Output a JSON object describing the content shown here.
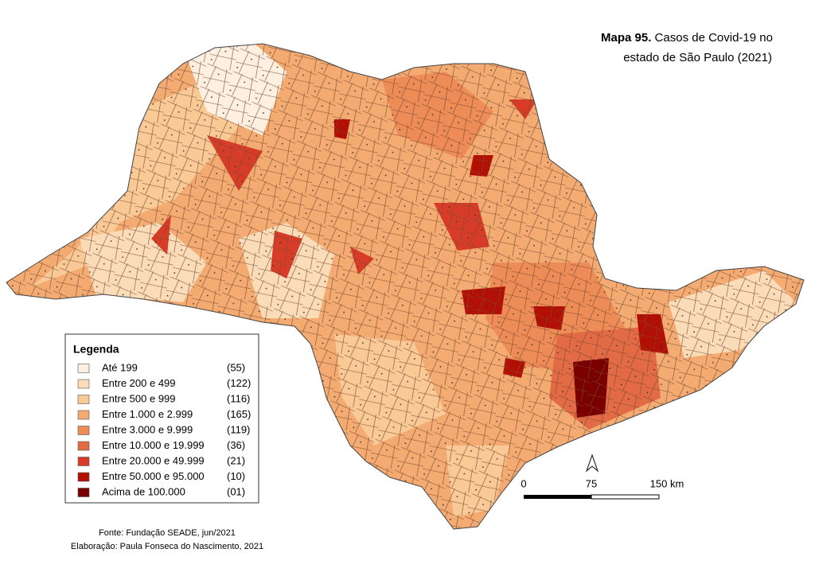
{
  "title": {
    "bold": "Mapa 95.",
    "line1": "Casos de Covid-19 no",
    "line2": "estado de São Paulo (2021)"
  },
  "legend": {
    "title": "Legenda",
    "items": [
      {
        "label": "Até 199",
        "count": "(55)",
        "color": "#fdf0e0"
      },
      {
        "label": "Entre 200 e 499",
        "count": "(122)",
        "color": "#fbdcb8"
      },
      {
        "label": "Entre 500 e 999",
        "count": "(116)",
        "color": "#f9c996"
      },
      {
        "label": "Entre 1.000 e 2.999",
        "count": "(165)",
        "color": "#f4ab72"
      },
      {
        "label": "Entre 3.000 e 9.999",
        "count": "(119)",
        "color": "#ee8c58"
      },
      {
        "label": "Entre 10.000 e 19.999",
        "count": "(36)",
        "color": "#e26a45"
      },
      {
        "label": "Entre 20.000 e 49.999",
        "count": "(21)",
        "color": "#d63c27"
      },
      {
        "label": "Entre 50.000 e 95.000",
        "count": "(10)",
        "color": "#b31005"
      },
      {
        "label": "Acima de 100.000",
        "count": "(01)",
        "color": "#7a0000"
      }
    ]
  },
  "scale": {
    "labels": [
      "0",
      "75",
      "150 km"
    ]
  },
  "source": {
    "line1": "Fonte: Fundação SEADE, jun/2021",
    "line2": "Elaboração: Paula Fonseca do Nascimento, 2021"
  }
}
